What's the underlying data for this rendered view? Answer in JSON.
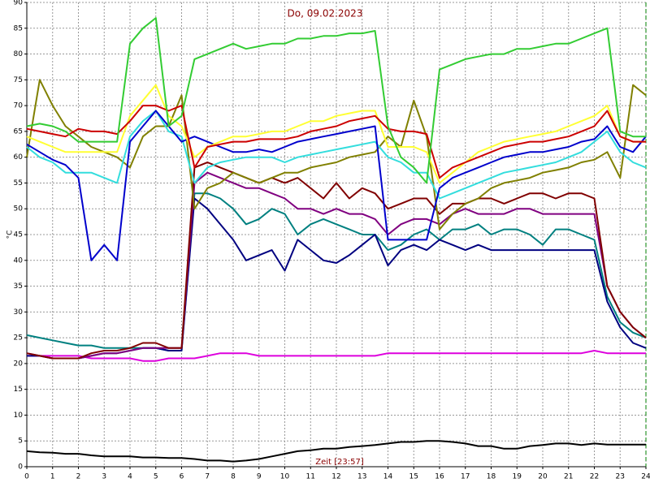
{
  "chart_data": {
    "type": "line",
    "title": "Do, 09.02.2023",
    "y_label": "°C",
    "x_label": "Zeit [23:57]",
    "xlim": [
      0,
      24
    ],
    "xticks": [
      0,
      1,
      2,
      3,
      4,
      5,
      6,
      7,
      8,
      9,
      10,
      11,
      12,
      13,
      14,
      15,
      16,
      17,
      18,
      19,
      20,
      21,
      22,
      23,
      24
    ],
    "ylim": [
      0,
      90
    ],
    "yticks": [
      0,
      5,
      10,
      15,
      20,
      25,
      30,
      35,
      40,
      45,
      50,
      55,
      60,
      65,
      70,
      75,
      80,
      85,
      90
    ],
    "grid": true,
    "x": [
      0,
      0.5,
      1,
      1.5,
      2,
      2.5,
      3,
      3.5,
      4,
      4.5,
      5,
      5.5,
      6,
      6.5,
      7,
      7.5,
      8,
      8.5,
      9,
      9.5,
      10,
      10.5,
      11,
      11.5,
      12,
      12.5,
      13,
      13.5,
      14,
      14.5,
      15,
      15.5,
      16,
      16.5,
      17,
      17.5,
      18,
      18.5,
      19,
      19.5,
      20,
      20.5,
      21,
      21.5,
      22,
      22.5,
      23,
      23.5,
      24
    ],
    "series": [
      {
        "color": "#dd00dd",
        "values": [
          21.5,
          21.5,
          21.5,
          21.5,
          21.5,
          21,
          21,
          21,
          21,
          20.5,
          20.5,
          21,
          21,
          21,
          21.5,
          22,
          22,
          22,
          21.5,
          21.5,
          21.5,
          21.5,
          21.5,
          21.5,
          21.5,
          21.5,
          21.5,
          21.5,
          22,
          22,
          22,
          22,
          22,
          22,
          22,
          22,
          22,
          22,
          22,
          22,
          22,
          22,
          22,
          22,
          22.5,
          22,
          22,
          22,
          22
        ]
      },
      {
        "color": "#000000",
        "values": [
          3,
          2.8,
          2.7,
          2.5,
          2.5,
          2.2,
          2,
          2,
          2,
          1.8,
          1.8,
          1.7,
          1.7,
          1.5,
          1.2,
          1.2,
          1,
          1.2,
          1.5,
          2,
          2.5,
          3,
          3.2,
          3.5,
          3.5,
          3.8,
          4,
          4.2,
          4.5,
          4.8,
          4.8,
          5,
          5,
          4.8,
          4.5,
          4,
          4,
          3.5,
          3.5,
          4,
          4.2,
          4.5,
          4.5,
          4.2,
          4.5,
          4.3,
          4.3,
          4.3,
          4.3
        ]
      },
      {
        "color": "#008080",
        "values": [
          25.5,
          25,
          24.5,
          24,
          23.5,
          23.5,
          23,
          23,
          23,
          23,
          23,
          22.5,
          22.5,
          53,
          53,
          52,
          50,
          47,
          48,
          50,
          49,
          45,
          47,
          48,
          47,
          46,
          45,
          45,
          42,
          43,
          45,
          46,
          44,
          46,
          46,
          47,
          45,
          46,
          46,
          45,
          43,
          46,
          46,
          45,
          44,
          33,
          28,
          26,
          25
        ]
      },
      {
        "color": "#000080",
        "values": [
          21.5,
          21.5,
          21,
          21,
          21,
          21.5,
          22,
          22,
          22.5,
          23,
          23,
          22.5,
          22.5,
          52,
          50,
          47,
          44,
          40,
          41,
          42,
          38,
          44,
          42,
          40,
          39.5,
          41,
          43,
          45,
          39,
          42,
          43,
          42,
          44,
          43,
          42,
          43,
          42,
          42,
          42,
          42,
          42,
          42,
          42,
          42,
          42,
          32,
          27,
          24,
          23
        ]
      },
      {
        "color": "#800080",
        "values": [
          22,
          21.5,
          21,
          21,
          21,
          21.5,
          22,
          22,
          22.5,
          23,
          23,
          23,
          23,
          55,
          57,
          56,
          55,
          54,
          54,
          53,
          52,
          50,
          50,
          49,
          50,
          49,
          49,
          48,
          45,
          47,
          48,
          48,
          47,
          49,
          50,
          49,
          49,
          49,
          50,
          50,
          49,
          49,
          49,
          49,
          49,
          35,
          30,
          27,
          25
        ]
      },
      {
        "color": "#800000",
        "values": [
          22,
          21.5,
          21,
          21,
          21,
          22,
          22.5,
          22.5,
          23,
          24,
          24,
          23,
          23,
          58,
          59,
          58,
          57,
          56,
          55,
          56,
          55,
          56,
          54,
          52,
          55,
          52,
          54,
          53,
          50,
          51,
          52,
          52,
          49,
          51,
          51,
          52,
          52,
          51,
          52,
          53,
          53,
          52,
          53,
          53,
          52,
          35,
          30,
          27,
          25
        ]
      },
      {
        "color": "#808000",
        "values": [
          60,
          75,
          70,
          66,
          64,
          62,
          61,
          60,
          58,
          64,
          66,
          66,
          72,
          50,
          54,
          55,
          57,
          56,
          55,
          56,
          57,
          57,
          58,
          58.5,
          59,
          60,
          60.5,
          61,
          64,
          62,
          71,
          64,
          46,
          49,
          51,
          52,
          54,
          55,
          55.5,
          56,
          57,
          57.5,
          58,
          59,
          59.5,
          61,
          56,
          74,
          72
        ]
      },
      {
        "color": "#33dddd",
        "values": [
          62,
          60,
          59,
          57,
          57,
          57,
          56,
          55,
          64,
          67,
          69,
          65,
          64,
          55,
          58,
          59,
          59.5,
          60,
          60,
          60,
          59,
          60,
          60.5,
          61,
          61.5,
          62,
          62.5,
          63,
          60,
          59,
          57,
          57,
          52,
          53,
          54,
          55,
          56,
          57,
          57.5,
          58,
          58.5,
          59,
          60,
          61,
          63,
          65,
          61,
          59,
          58
        ]
      },
      {
        "color": "#0000cc",
        "values": [
          62.5,
          61,
          59.5,
          58.5,
          56,
          40,
          43,
          40,
          63,
          66,
          69,
          66,
          63,
          64,
          63,
          62,
          61,
          61,
          61.5,
          61,
          62,
          63,
          63.5,
          64,
          64.5,
          65,
          65.5,
          66,
          44,
          44,
          44,
          44,
          54,
          56,
          57,
          58,
          59,
          60,
          60.5,
          61,
          61,
          61.5,
          62,
          63,
          63.5,
          66,
          62,
          61,
          64
        ]
      },
      {
        "color": "#ffff33",
        "values": [
          64,
          63,
          62,
          61,
          61,
          61,
          61,
          61,
          68,
          71,
          74,
          68,
          66,
          60,
          62,
          63,
          64,
          64,
          64.5,
          65,
          65,
          66,
          67,
          67,
          68,
          68.5,
          69,
          69,
          62,
          62,
          62,
          61,
          55,
          57,
          59,
          61,
          62,
          63,
          63.5,
          64,
          64.5,
          65,
          66,
          67,
          68,
          70,
          64,
          63,
          63
        ]
      },
      {
        "color": "#cc0000",
        "values": [
          65.5,
          65,
          64.5,
          64,
          65.5,
          65,
          65,
          64.5,
          67,
          70,
          70,
          69,
          70,
          58,
          62,
          62.5,
          63,
          63,
          63.5,
          63.5,
          63.5,
          64,
          65,
          65.5,
          66,
          67,
          67.5,
          68,
          65.5,
          65,
          65,
          64.5,
          56,
          58,
          59,
          60,
          61,
          62,
          62.5,
          63,
          63,
          63.5,
          64,
          65,
          66,
          69,
          64,
          63,
          63
        ]
      },
      {
        "color": "#33cc33",
        "values": [
          66,
          66.5,
          66,
          65,
          63,
          63,
          63,
          63,
          82,
          85,
          87,
          66,
          68,
          79,
          80,
          81,
          82,
          81,
          81.5,
          82,
          82,
          83,
          83,
          83.5,
          83.5,
          84,
          84,
          84.5,
          66,
          60,
          58,
          55,
          77,
          78,
          79,
          79.5,
          80,
          80,
          81,
          81,
          81.5,
          82,
          82,
          83,
          84,
          85,
          65,
          64,
          64
        ]
      }
    ]
  }
}
